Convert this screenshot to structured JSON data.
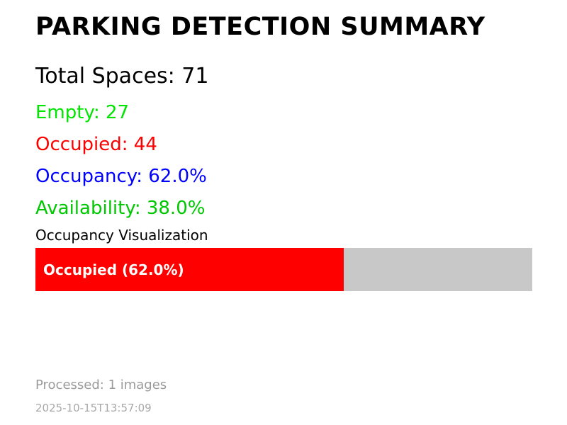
{
  "summary": {
    "title": "PARKING DETECTION SUMMARY",
    "total_spaces": "Total Spaces: 71",
    "empty": "Empty: 27",
    "occupied": "Occupied: 44",
    "occupancy": "Occupancy: 62.0%",
    "availability": "Availability: 38.0%"
  },
  "visualization": {
    "label": "Occupancy Visualization",
    "bar_text": "Occupied (62.0%)",
    "occupied_percent": 62.0
  },
  "footer": {
    "processed": "Processed: 1 images",
    "timestamp": "2025-10-15T13:57:09"
  },
  "colors": {
    "empty": "#00e600",
    "occupied": "#ff0000",
    "occupancy": "#0000ff",
    "availability": "#00c800",
    "bar_fill": "#ff0000",
    "bar_track": "#c8c8c8"
  }
}
